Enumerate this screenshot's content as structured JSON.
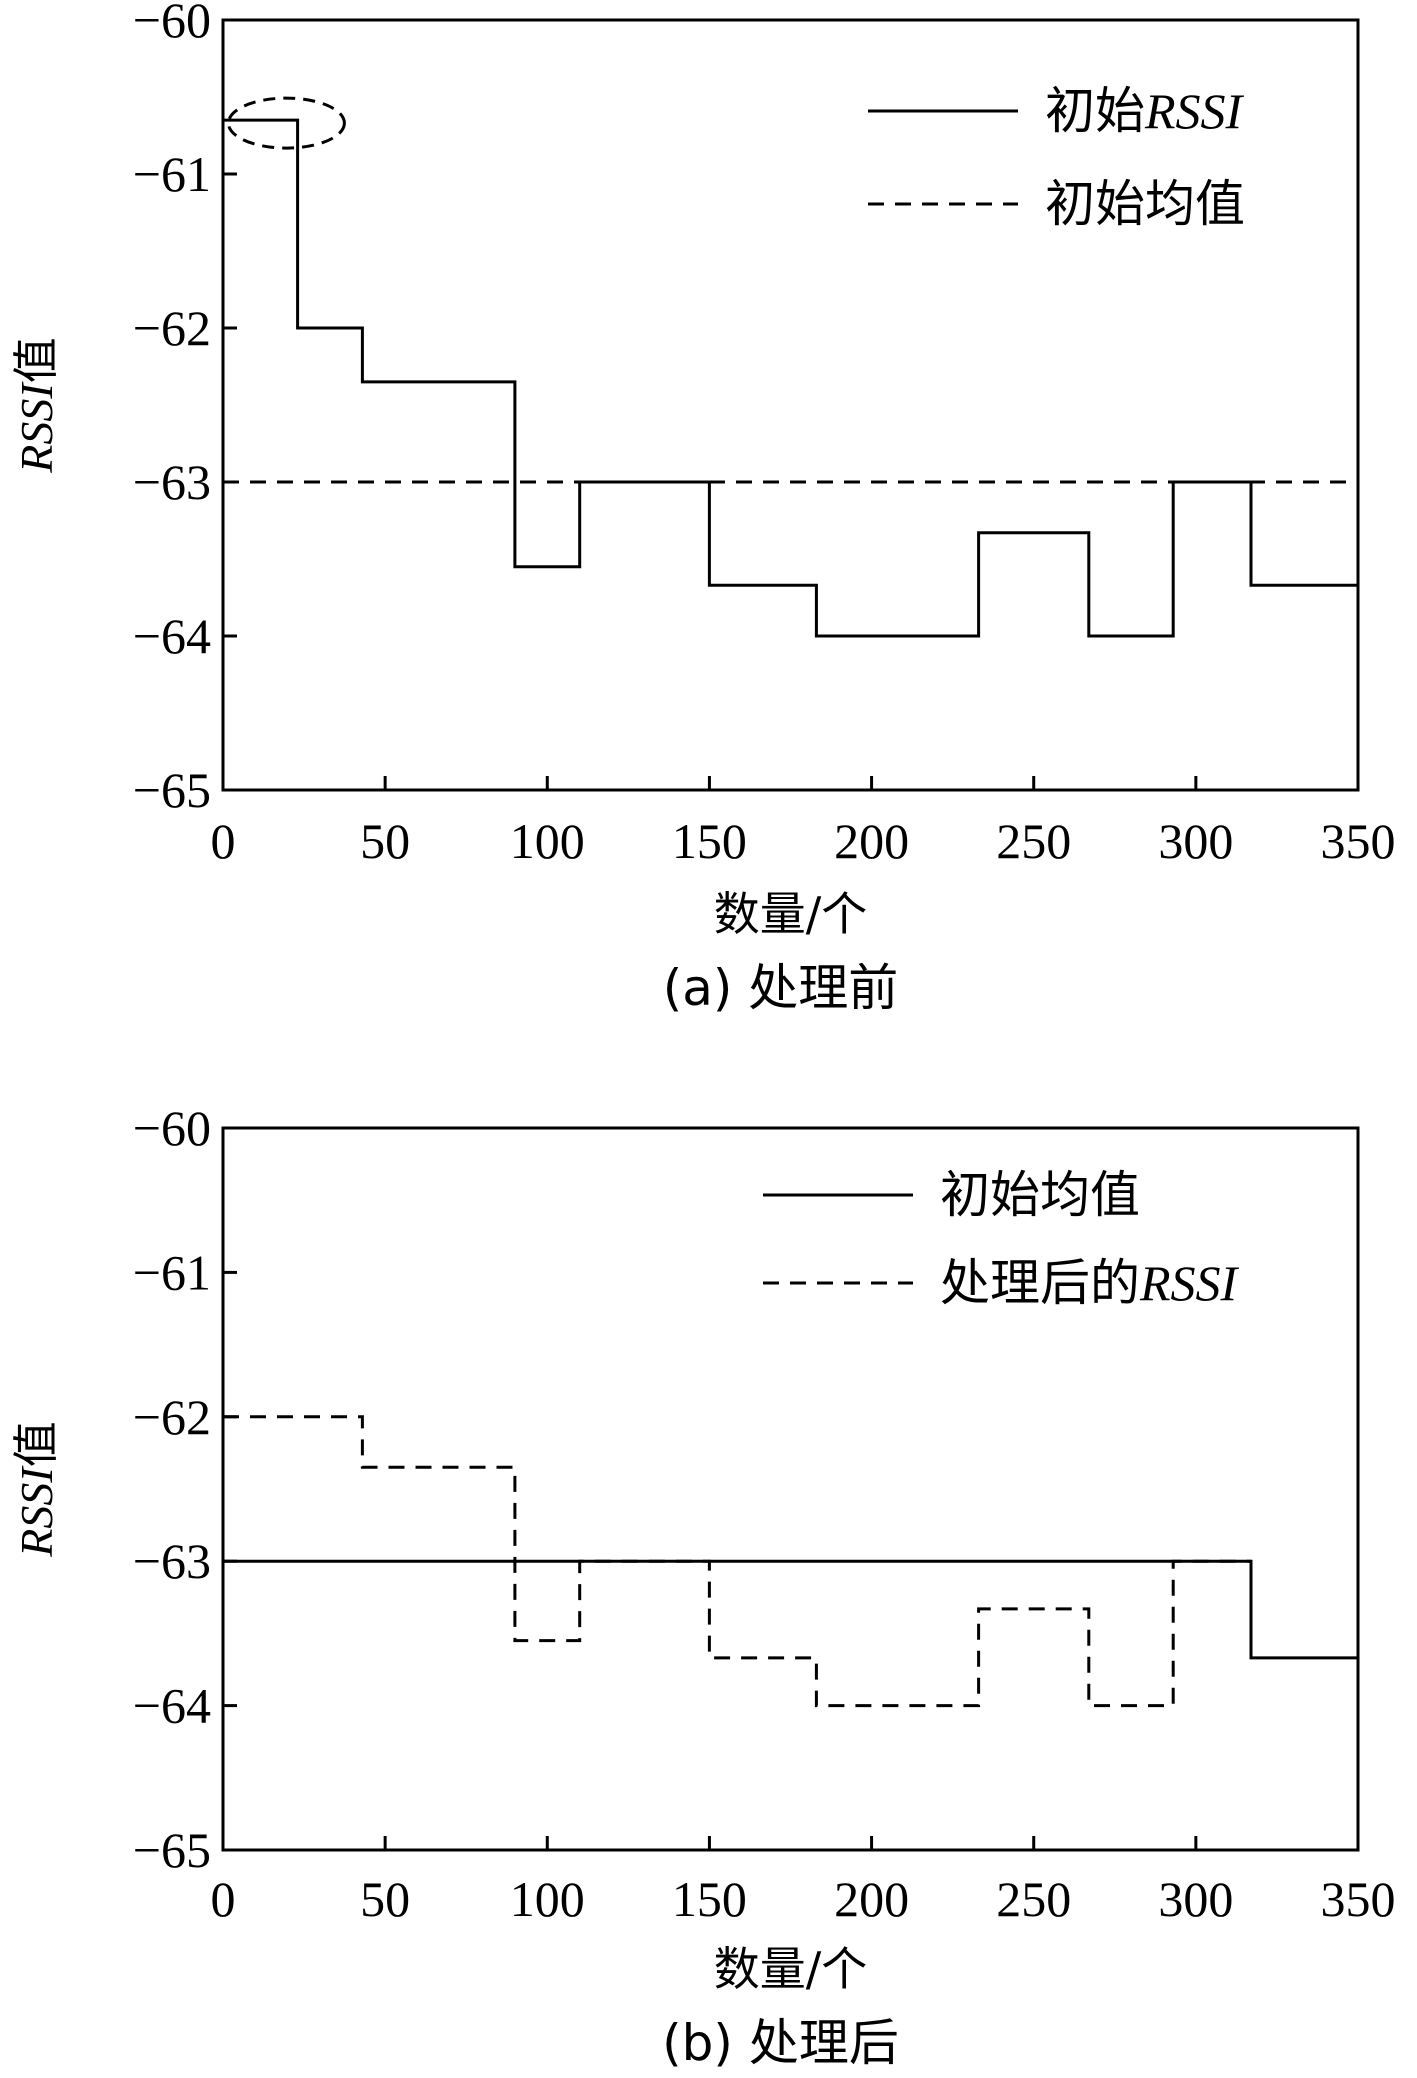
{
  "chart_data": [
    {
      "type": "line",
      "caption": "(a) 处理前",
      "xlabel": "数量/个",
      "ylabel_italic": "RSSI",
      "ylabel_suffix": "值",
      "xlim": [
        0,
        350
      ],
      "ylim": [
        -65,
        -60
      ],
      "xticks": [
        0,
        50,
        100,
        150,
        200,
        250,
        300,
        350
      ],
      "yticks": [
        -60,
        -61,
        -62,
        -63,
        -64,
        -65
      ],
      "xtick_labels": [
        "0",
        "50",
        "100",
        "150",
        "200",
        "250",
        "300",
        "350"
      ],
      "ytick_labels": [
        "−60",
        "−61",
        "−62",
        "−63",
        "−64",
        "−65"
      ],
      "grid": false,
      "legend_position": "top-right",
      "series": [
        {
          "name": "初始",
          "name_italic": "RSSI",
          "style": "solid",
          "shape": "step",
          "x": [
            0,
            23,
            23,
            43,
            43,
            90,
            90,
            110,
            110,
            150,
            150,
            183,
            183,
            233,
            233,
            267,
            267,
            293,
            293,
            317,
            317,
            350
          ],
          "y": [
            -60.65,
            -60.65,
            -62,
            -62,
            -62.35,
            -62.35,
            -63.55,
            -63.55,
            -63,
            -63,
            -63.67,
            -63.67,
            -64,
            -64,
            -63.33,
            -63.33,
            -64,
            -64,
            -63,
            -63,
            -63.67,
            -63.67
          ]
        },
        {
          "name": "初始均值",
          "name_italic": "",
          "style": "dashed",
          "shape": "line",
          "x": [
            0,
            350
          ],
          "y": [
            -63,
            -63
          ]
        }
      ],
      "annotations": [
        {
          "type": "ellipse",
          "style": "dashed",
          "x": 14,
          "y": -60.65
        }
      ]
    },
    {
      "type": "line",
      "caption": "(b) 处理后",
      "xlabel": "数量/个",
      "ylabel_italic": "RSSI",
      "ylabel_suffix": "值",
      "xlim": [
        0,
        350
      ],
      "ylim": [
        -65,
        -60
      ],
      "xticks": [
        0,
        50,
        100,
        150,
        200,
        250,
        300,
        350
      ],
      "yticks": [
        -60,
        -61,
        -62,
        -63,
        -64,
        -65
      ],
      "xtick_labels": [
        "0",
        "50",
        "100",
        "150",
        "200",
        "250",
        "300",
        "350"
      ],
      "ytick_labels": [
        "−60",
        "−61",
        "−62",
        "−63",
        "−64",
        "−65"
      ],
      "grid": false,
      "legend_position": "top-right",
      "series": [
        {
          "name": "初始均值",
          "name_italic": "",
          "style": "solid",
          "shape": "step",
          "x": [
            0,
            317,
            317,
            350
          ],
          "y": [
            -63,
            -63,
            -63.67,
            -63.67
          ]
        },
        {
          "name": "处理后的",
          "name_italic": "RSSI",
          "style": "dashed",
          "shape": "step",
          "x": [
            0,
            43,
            43,
            90,
            90,
            110,
            110,
            150,
            150,
            183,
            183,
            233,
            233,
            267,
            267,
            293,
            293,
            317
          ],
          "y": [
            -62,
            -62,
            -62.35,
            -62.35,
            -63.55,
            -63.55,
            -63,
            -63,
            -63.67,
            -63.67,
            -64,
            -64,
            -63.33,
            -63.33,
            -64,
            -64,
            -63,
            -63
          ]
        }
      ],
      "annotations": []
    }
  ]
}
